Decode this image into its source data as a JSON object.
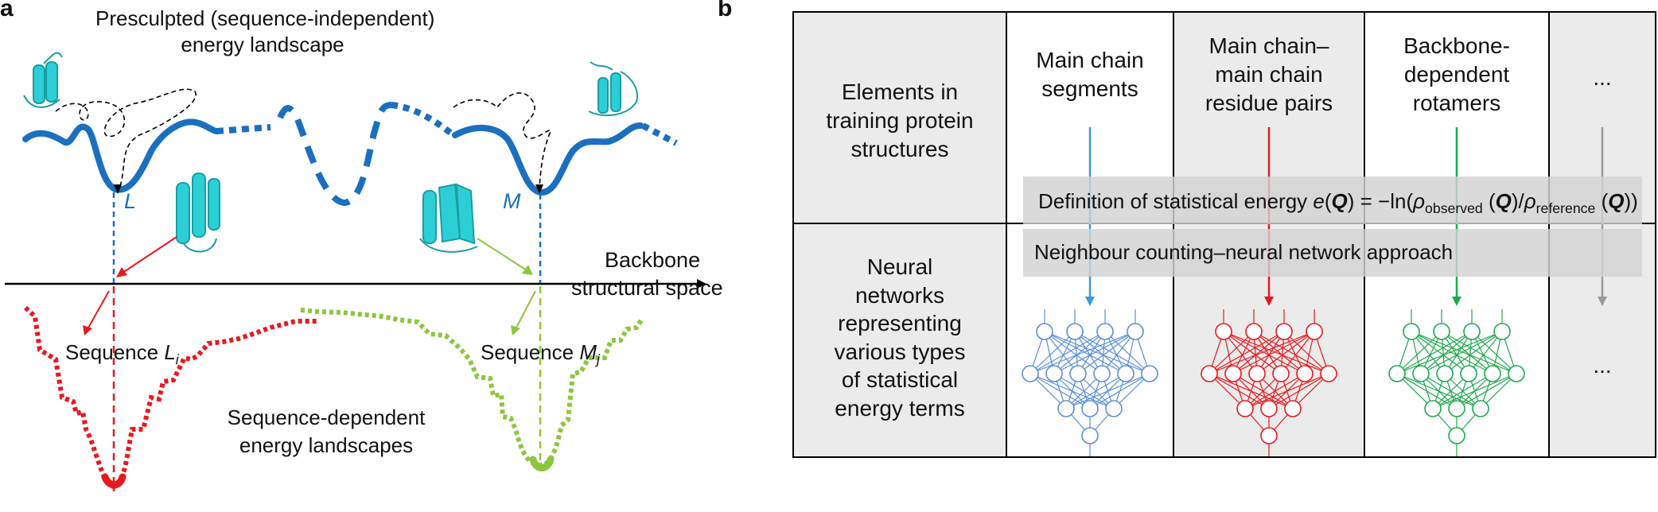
{
  "panel_a": {
    "label": "a",
    "title_line1": "Presculpted (sequence-independent)",
    "title_line2": "energy landscape",
    "minimum_L": "L",
    "minimum_M": "M",
    "axis_label_line1": "Backbone",
    "axis_label_line2": "structural space",
    "sequence_L_prefix": "Sequence ",
    "sequence_L_var": "L",
    "sequence_L_sub": "i",
    "sequence_M_prefix": "Sequence ",
    "sequence_M_var": "M",
    "sequence_M_sub": "j",
    "seq_landscape_line1": "Sequence-dependent",
    "seq_landscape_line2": "energy landscapes",
    "colors": {
      "presculpted": "#1a6fbf",
      "sequence_L": "#e8191e",
      "sequence_M": "#8cc63f",
      "protein": "#2ccfd6"
    }
  },
  "panel_b": {
    "label": "b",
    "row1_header": [
      "Elements in",
      "training protein",
      "structures"
    ],
    "row2_header": [
      "Neural",
      "networks",
      "representing",
      "various types",
      "of statistical",
      "energy terms"
    ],
    "col1": [
      "Main chain",
      "segments"
    ],
    "col2": [
      "Main chain–",
      "main chain",
      "residue pairs"
    ],
    "col3": [
      "Backbone-",
      "dependent",
      "rotamers"
    ],
    "col4": "...",
    "col4_bottom": "...",
    "band1_prefix": "Definition of statistical energy ",
    "band1_e": "e",
    "band1_Q": "Q",
    "band1_mid": ") = −ln(",
    "band1_rho": "ρ",
    "band1_sub1": "observed",
    "band1_sub2": "reference",
    "band2": "Neighbour counting–neural network approach",
    "colors": {
      "col1": "#3a9ad9",
      "col1_net": "#5b8fd6",
      "col2": "#e8191e",
      "col3": "#1fa84d",
      "col4": "#9a9a9a",
      "grid_gray": "#ebebeb"
    }
  }
}
